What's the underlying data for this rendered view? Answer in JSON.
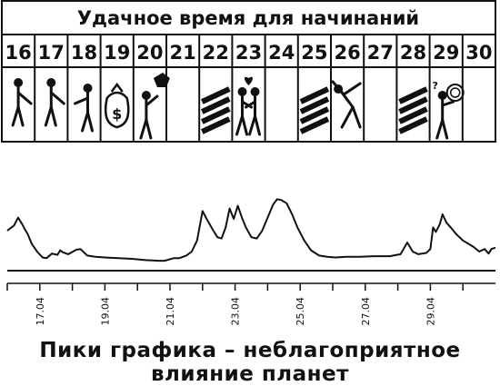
{
  "calendar": {
    "title": "Удачное время для начинаний",
    "days": [
      {
        "day": "16",
        "icon": "handshake-icon"
      },
      {
        "day": "17",
        "icon": "handshake-icon"
      },
      {
        "day": "18",
        "icon": "person-pointing-icon"
      },
      {
        "day": "19",
        "icon": "money-bag-icon"
      },
      {
        "day": "20",
        "icon": "person-watering-can-icon"
      },
      {
        "day": "21",
        "icon": ""
      },
      {
        "day": "22",
        "icon": "hatched-stripes-icon"
      },
      {
        "day": "23",
        "icon": "kissing-couple-icon"
      },
      {
        "day": "24",
        "icon": ""
      },
      {
        "day": "25",
        "icon": "hatched-stripes-icon"
      },
      {
        "day": "26",
        "icon": "person-stretching-icon"
      },
      {
        "day": "27",
        "icon": ""
      },
      {
        "day": "28",
        "icon": "hatched-stripes-icon"
      },
      {
        "day": "29",
        "icon": "confused-person-tangled-icon"
      },
      {
        "day": "30",
        "icon": ""
      }
    ],
    "dollar_sign": "$",
    "question_mark": "?"
  },
  "chart_data": {
    "type": "line",
    "title": "",
    "xlabel": "",
    "ylabel": "",
    "grid": false,
    "xlim": [
      "2023-04-16T00:00",
      "2023-05-01T00:00"
    ],
    "ylim": [
      0,
      100
    ],
    "baseline": 0,
    "tick_dates": [
      "2023-04-16",
      "2023-04-17",
      "2023-04-18",
      "2023-04-19",
      "2023-04-20",
      "2023-04-21",
      "2023-04-22",
      "2023-04-23",
      "2023-04-24",
      "2023-04-25",
      "2023-04-26",
      "2023-04-27",
      "2023-04-28",
      "2023-04-29",
      "2023-04-30"
    ],
    "tick_labels": [
      {
        "date": "2023-04-17",
        "label": "17.04"
      },
      {
        "date": "2023-04-19",
        "label": "19.04"
      },
      {
        "date": "2023-04-21",
        "label": "21.04"
      },
      {
        "date": "2023-04-23",
        "label": "23.04"
      },
      {
        "date": "2023-04-25",
        "label": "25.04"
      },
      {
        "date": "2023-04-27",
        "label": "27.04"
      },
      {
        "date": "2023-04-29",
        "label": "29.04"
      }
    ],
    "series": [
      {
        "color": "#111111",
        "points": [
          [
            "2023-04-16T00:00",
            50
          ],
          [
            "2023-04-16T05:00",
            58
          ],
          [
            "2023-04-16T08:00",
            70
          ],
          [
            "2023-04-16T11:00",
            60
          ],
          [
            "2023-04-16T13:00",
            52
          ],
          [
            "2023-04-16T15:00",
            45
          ],
          [
            "2023-04-16T18:00",
            30
          ],
          [
            "2023-04-16T22:00",
            18
          ],
          [
            "2023-04-17T02:00",
            9
          ],
          [
            "2023-04-17T05:00",
            8
          ],
          [
            "2023-04-17T09:00",
            15
          ],
          [
            "2023-04-17T13:00",
            13
          ],
          [
            "2023-04-17T15:00",
            20
          ],
          [
            "2023-04-17T17:00",
            17
          ],
          [
            "2023-04-17T21:00",
            14
          ],
          [
            "2023-04-18T03:00",
            21
          ],
          [
            "2023-04-18T06:00",
            22
          ],
          [
            "2023-04-18T11:00",
            12
          ],
          [
            "2023-04-18T17:00",
            10
          ],
          [
            "2023-04-19T00:00",
            9
          ],
          [
            "2023-04-19T10:00",
            8
          ],
          [
            "2023-04-19T20:00",
            7
          ],
          [
            "2023-04-20T06:00",
            5
          ],
          [
            "2023-04-20T16:00",
            4
          ],
          [
            "2023-04-20T20:00",
            4
          ],
          [
            "2023-04-21T03:00",
            8
          ],
          [
            "2023-04-21T07:00",
            8
          ],
          [
            "2023-04-21T12:00",
            12
          ],
          [
            "2023-04-21T16:00",
            18
          ],
          [
            "2023-04-21T20:00",
            35
          ],
          [
            "2023-04-22T00:00",
            80
          ],
          [
            "2023-04-22T03:00",
            68
          ],
          [
            "2023-04-22T08:00",
            50
          ],
          [
            "2023-04-22T11:00",
            40
          ],
          [
            "2023-04-22T14:00",
            38
          ],
          [
            "2023-04-22T17:00",
            55
          ],
          [
            "2023-04-22T20:00",
            84
          ],
          [
            "2023-04-22T23:00",
            68
          ],
          [
            "2023-04-23T02:00",
            88
          ],
          [
            "2023-04-23T05:00",
            70
          ],
          [
            "2023-04-23T08:00",
            55
          ],
          [
            "2023-04-23T12:00",
            40
          ],
          [
            "2023-04-23T16:00",
            38
          ],
          [
            "2023-04-23T20:00",
            50
          ],
          [
            "2023-04-24T00:00",
            70
          ],
          [
            "2023-04-24T04:00",
            90
          ],
          [
            "2023-04-24T07:00",
            98
          ],
          [
            "2023-04-24T10:00",
            97
          ],
          [
            "2023-04-24T14:00",
            92
          ],
          [
            "2023-04-24T18:00",
            75
          ],
          [
            "2023-04-24T22:00",
            55
          ],
          [
            "2023-04-25T03:00",
            35
          ],
          [
            "2023-04-25T08:00",
            20
          ],
          [
            "2023-04-25T14:00",
            12
          ],
          [
            "2023-04-25T20:00",
            10
          ],
          [
            "2023-04-26T02:00",
            9
          ],
          [
            "2023-04-26T10:00",
            10
          ],
          [
            "2023-04-26T20:00",
            10
          ],
          [
            "2023-04-27T06:00",
            11
          ],
          [
            "2023-04-27T18:00",
            11
          ],
          [
            "2023-04-28T02:00",
            14
          ],
          [
            "2023-04-28T07:00",
            32
          ],
          [
            "2023-04-28T11:00",
            18
          ],
          [
            "2023-04-28T15:00",
            14
          ],
          [
            "2023-04-28T21:00",
            16
          ],
          [
            "2023-04-29T00:00",
            22
          ],
          [
            "2023-04-29T02:00",
            55
          ],
          [
            "2023-04-29T04:00",
            48
          ],
          [
            "2023-04-29T07:00",
            60
          ],
          [
            "2023-04-29T09:00",
            75
          ],
          [
            "2023-04-29T12:00",
            62
          ],
          [
            "2023-04-29T15:00",
            55
          ],
          [
            "2023-04-29T19:00",
            45
          ],
          [
            "2023-04-30T00:00",
            35
          ],
          [
            "2023-04-30T04:00",
            30
          ],
          [
            "2023-04-30T08:00",
            25
          ],
          [
            "2023-04-30T12:00",
            18
          ],
          [
            "2023-04-30T16:00",
            22
          ],
          [
            "2023-04-30T19:00",
            15
          ],
          [
            "2023-04-30T21:00",
            22
          ],
          [
            "2023-05-01T00:00",
            24
          ]
        ]
      }
    ]
  },
  "caption": "Пики графика – неблагоприятное влияние планет"
}
